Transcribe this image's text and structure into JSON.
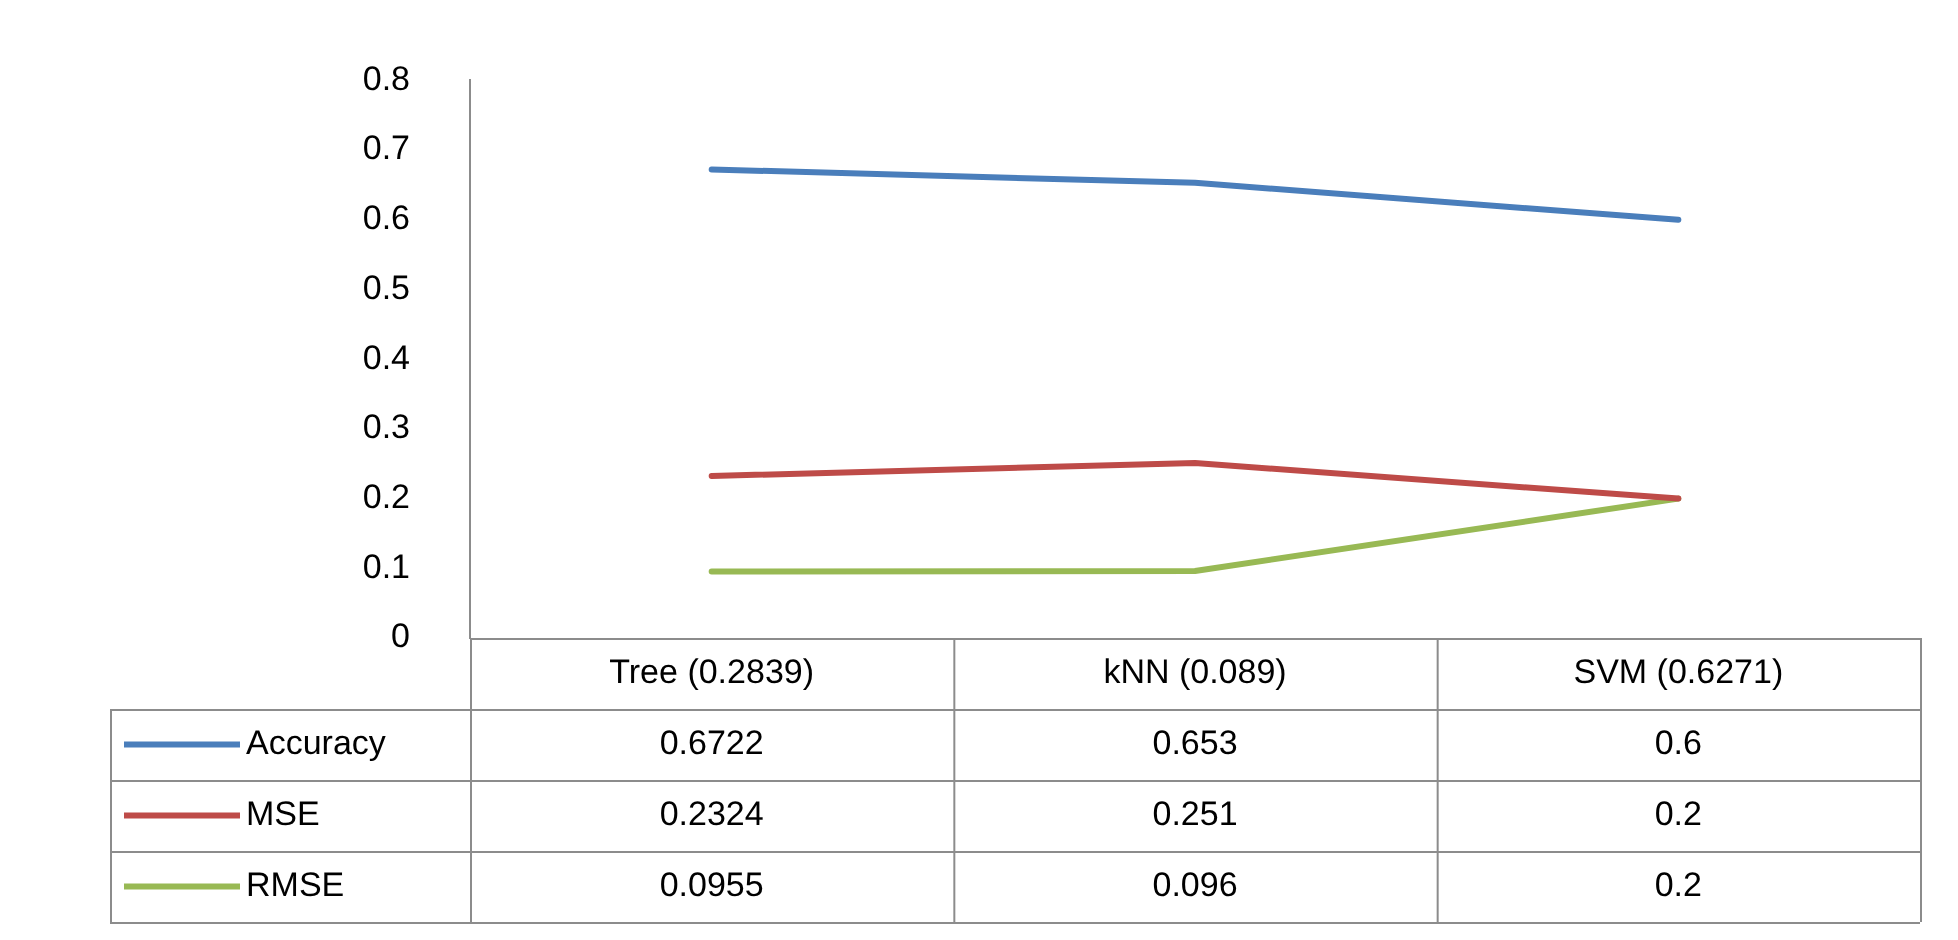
{
  "chart_data": {
    "type": "line",
    "categories": [
      "Tree (0.2839)",
      "kNN (0.089)",
      "SVM (0.6271)"
    ],
    "series": [
      {
        "name": "Accuracy",
        "color": "#4a7ebb",
        "values": [
          0.6722,
          0.653,
          0.6
        ]
      },
      {
        "name": "MSE",
        "color": "#be4b48",
        "values": [
          0.2324,
          0.251,
          0.2
        ]
      },
      {
        "name": "RMSE",
        "color": "#98b954",
        "values": [
          0.0955,
          0.096,
          0.2
        ]
      }
    ],
    "ylim": [
      0,
      0.8
    ],
    "yticks": [
      0,
      0.1,
      0.2,
      0.3,
      0.4,
      0.5,
      0.6,
      0.7,
      0.8
    ],
    "grid": false,
    "legend": "bottom",
    "data_labels": true,
    "marker": "none"
  }
}
